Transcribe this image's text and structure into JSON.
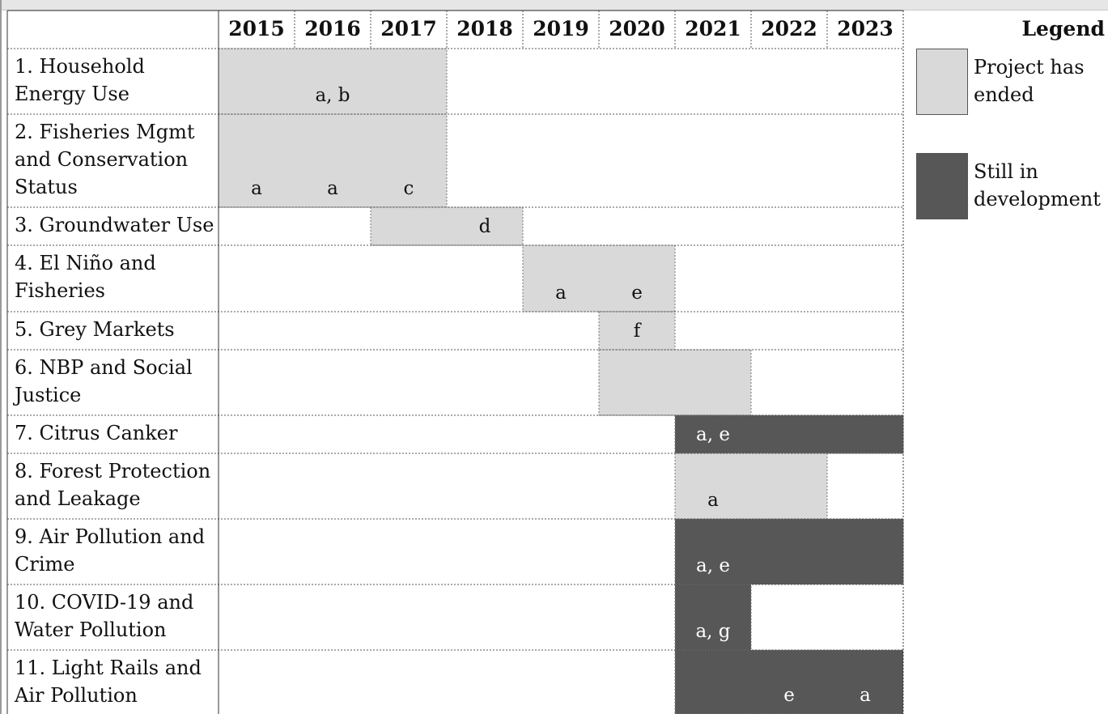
{
  "colors": {
    "ended": "#d9d9d9",
    "developing": "#575757",
    "grid": "#555555"
  },
  "years": [
    "2015",
    "2016",
    "2017",
    "2018",
    "2019",
    "2020",
    "2021",
    "2022",
    "2023"
  ],
  "legend": {
    "title": "Legend",
    "items": [
      {
        "status": "ended",
        "label": "Project has ended"
      },
      {
        "status": "developing",
        "label": "Still in development"
      }
    ]
  },
  "rows": [
    {
      "label": "1. Household Energy Use",
      "bars": [
        {
          "start": "2015",
          "end": "2017",
          "status": "ended"
        }
      ],
      "notes": [
        {
          "year": "2016",
          "text": "a, b"
        }
      ]
    },
    {
      "label": "2. Fisheries Mgmt and Conservation Status",
      "bars": [
        {
          "start": "2015",
          "end": "2017",
          "status": "ended"
        }
      ],
      "notes": [
        {
          "year": "2015",
          "text": "a"
        },
        {
          "year": "2016",
          "text": "a"
        },
        {
          "year": "2017",
          "text": "c"
        }
      ]
    },
    {
      "label": "3. Groundwater Use",
      "bars": [
        {
          "start": "2017",
          "end": "2018",
          "status": "ended"
        }
      ],
      "notes": [
        {
          "year": "2018",
          "text": "d"
        }
      ]
    },
    {
      "label": "4. El Niño and Fisheries",
      "bars": [
        {
          "start": "2019",
          "end": "2020",
          "status": "ended"
        }
      ],
      "notes": [
        {
          "year": "2019",
          "text": "a"
        },
        {
          "year": "2020",
          "text": "e"
        }
      ]
    },
    {
      "label": "5. Grey Markets",
      "bars": [
        {
          "start": "2020",
          "end": "2020",
          "status": "ended"
        }
      ],
      "notes": [
        {
          "year": "2020",
          "text": "f"
        }
      ]
    },
    {
      "label": "6. NBP and Social Justice",
      "bars": [
        {
          "start": "2020",
          "end": "2021",
          "status": "ended"
        }
      ],
      "notes": []
    },
    {
      "label": "7. Citrus Canker",
      "bars": [
        {
          "start": "2021",
          "end": "2023",
          "status": "developing"
        }
      ],
      "notes": [
        {
          "year": "2021",
          "text": "a, e"
        }
      ]
    },
    {
      "label": "8. Forest Protection and Leakage",
      "bars": [
        {
          "start": "2021",
          "end": "2022",
          "status": "ended"
        }
      ],
      "notes": [
        {
          "year": "2021",
          "text": "a"
        }
      ]
    },
    {
      "label": "9. Air Pollution and Crime",
      "bars": [
        {
          "start": "2021",
          "end": "2023",
          "status": "developing"
        }
      ],
      "notes": [
        {
          "year": "2021",
          "text": "a, e"
        }
      ]
    },
    {
      "label": "10. COVID-19 and Water Pollution",
      "bars": [
        {
          "start": "2021",
          "end": "2021",
          "status": "developing"
        }
      ],
      "notes": [
        {
          "year": "2021",
          "text": "a, g"
        }
      ]
    },
    {
      "label": "11. Light Rails and Air Pollution",
      "bars": [
        {
          "start": "2021",
          "end": "2023",
          "status": "developing"
        }
      ],
      "notes": [
        {
          "year": "2022",
          "text": "e"
        },
        {
          "year": "2023",
          "text": "a"
        }
      ]
    }
  ]
}
